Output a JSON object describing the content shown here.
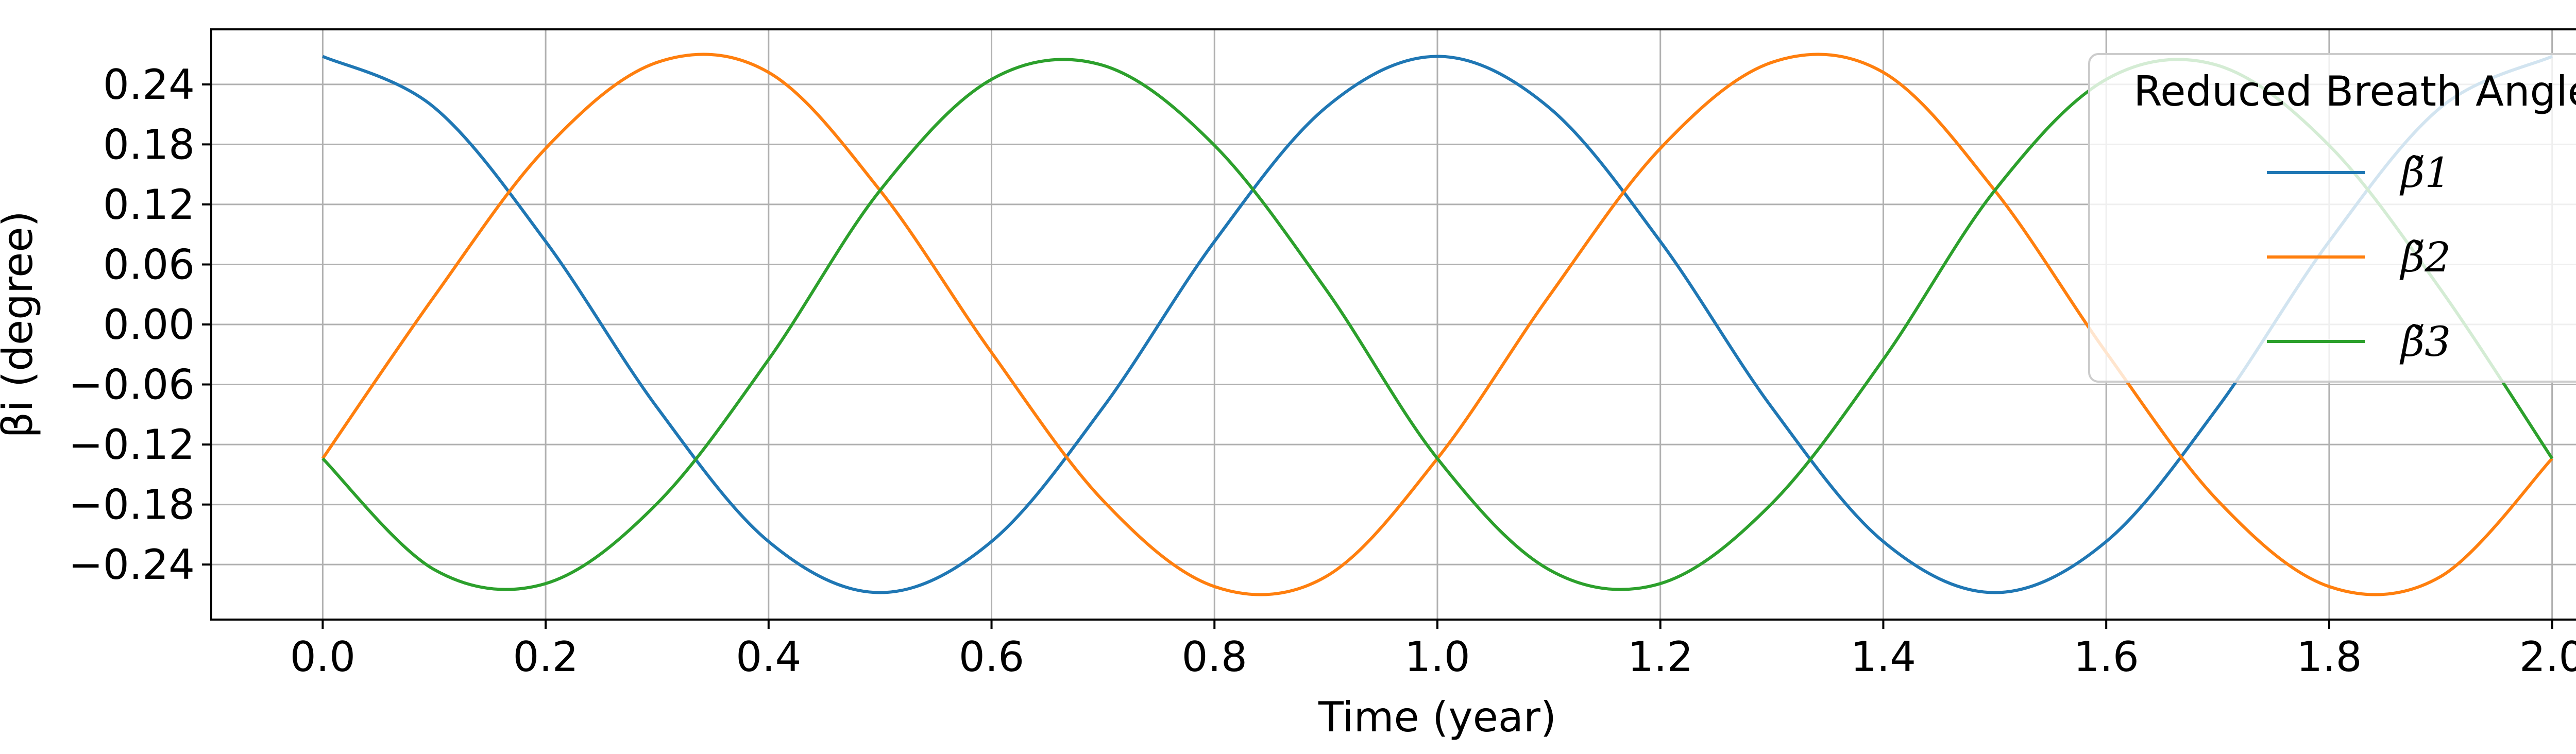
{
  "chart_data": {
    "type": "line",
    "title": "",
    "xlabel": "Time (year)",
    "ylabel": "βi (degree)",
    "xlim": [
      -0.1,
      2.1
    ],
    "ylim": [
      -0.295,
      0.295
    ],
    "x_ticks": [
      0.0,
      0.2,
      0.4,
      0.6,
      0.8,
      1.0,
      1.2,
      1.4,
      1.6,
      1.8,
      2.0
    ],
    "x_tick_labels": [
      "0.0",
      "0.2",
      "0.4",
      "0.6",
      "0.8",
      "1.0",
      "1.2",
      "1.4",
      "1.6",
      "1.8",
      "2.0"
    ],
    "y_ticks": [
      0.24,
      0.18,
      0.12,
      0.06,
      0.0,
      -0.06,
      -0.12,
      -0.18,
      -0.24
    ],
    "y_tick_labels": [
      "0.24",
      "0.18",
      "0.12",
      "0.06",
      "0.00",
      "−0.06",
      "−0.12",
      "−0.18",
      "−0.24"
    ],
    "grid": true,
    "legend": {
      "title": "Reduced Breath Angle",
      "placement": "top-right"
    },
    "series": [
      {
        "name": "β̃1",
        "color": "#1f77b4",
        "x": [
          0.0,
          0.1,
          0.2,
          0.3,
          0.4,
          0.5,
          0.6,
          0.7,
          0.8,
          0.9,
          1.0,
          1.1,
          1.2,
          1.3,
          1.4,
          1.5,
          1.6,
          1.7,
          1.8,
          1.9,
          2.0
        ],
        "y": [
          0.268,
          0.217,
          0.083,
          -0.083,
          -0.217,
          -0.268,
          -0.217,
          -0.083,
          0.083,
          0.217,
          0.268,
          0.217,
          0.083,
          -0.083,
          -0.217,
          -0.268,
          -0.217,
          -0.083,
          0.083,
          0.217,
          0.268
        ]
      },
      {
        "name": "β̃2",
        "color": "#ff7f0e",
        "x": [
          0.0,
          0.1,
          0.2,
          0.3,
          0.4,
          0.5,
          0.6,
          0.7,
          0.8,
          0.9,
          1.0,
          1.1,
          1.2,
          1.3,
          1.4,
          1.5,
          1.6,
          1.7,
          1.8,
          1.9,
          2.0
        ],
        "y": [
          -0.134,
          0.028,
          0.176,
          0.262,
          0.252,
          0.134,
          -0.028,
          -0.176,
          -0.262,
          -0.252,
          -0.134,
          0.028,
          0.176,
          0.262,
          0.252,
          0.134,
          -0.028,
          -0.176,
          -0.262,
          -0.252,
          -0.134
        ]
      },
      {
        "name": "β̃3",
        "color": "#2ca02c",
        "x": [
          0.0,
          0.1,
          0.2,
          0.3,
          0.4,
          0.5,
          0.6,
          0.7,
          0.8,
          0.9,
          1.0,
          1.1,
          1.2,
          1.3,
          1.4,
          1.5,
          1.6,
          1.7,
          1.8,
          1.9,
          2.0
        ],
        "y": [
          -0.134,
          -0.245,
          -0.259,
          -0.179,
          -0.035,
          0.134,
          0.245,
          0.259,
          0.179,
          0.035,
          -0.134,
          -0.245,
          -0.259,
          -0.179,
          -0.035,
          0.134,
          0.245,
          0.259,
          0.179,
          0.035,
          -0.134
        ]
      }
    ]
  }
}
